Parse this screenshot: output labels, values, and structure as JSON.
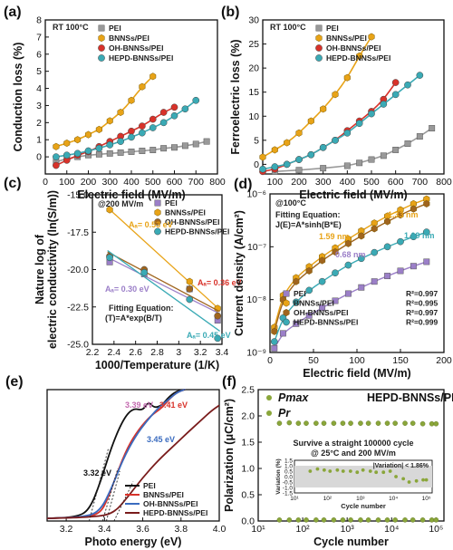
{
  "chart_data": [
    {
      "panel": "(a)",
      "type": "scatter",
      "note": "RT 100°C",
      "xlabel": "Electric field (MV/m)",
      "ylabel": "Conduction loss (%)",
      "xlim": [
        0,
        800
      ],
      "ylim": [
        -1,
        8
      ],
      "xticks": [
        0,
        100,
        200,
        300,
        400,
        500,
        600,
        700,
        800
      ],
      "yticks": [
        0,
        1,
        2,
        3,
        4,
        5,
        6,
        7,
        8
      ],
      "legend_position": "top-left",
      "series": [
        {
          "name": "PEI",
          "color": "#999999",
          "fit": true,
          "x": [
            50,
            100,
            150,
            200,
            250,
            300,
            350,
            400,
            450,
            500,
            550,
            600,
            650,
            700,
            750
          ],
          "y": [
            -0.3,
            -0.1,
            0.0,
            0.1,
            0.15,
            0.2,
            0.25,
            0.3,
            0.35,
            0.4,
            0.5,
            0.55,
            0.65,
            0.75,
            0.9
          ]
        },
        {
          "name": "BNNSs/PEI",
          "color": "#e8a317",
          "fit": true,
          "x": [
            50,
            100,
            150,
            200,
            250,
            300,
            350,
            400,
            450,
            500
          ],
          "y": [
            0.6,
            0.8,
            1.0,
            1.3,
            1.6,
            2.1,
            2.6,
            3.3,
            4.1,
            4.7
          ]
        },
        {
          "name": "OH-BNNSs/PEI",
          "color": "#d8322a",
          "fit": true,
          "x": [
            50,
            100,
            150,
            200,
            250,
            300,
            350,
            400,
            450,
            500,
            550,
            600
          ],
          "y": [
            -0.5,
            -0.2,
            0.1,
            0.3,
            0.6,
            0.9,
            1.2,
            1.5,
            1.8,
            2.2,
            2.6,
            2.9
          ]
        },
        {
          "name": "HEPD-BNNSs/PEI",
          "color": "#3aaab5",
          "fit": true,
          "x": [
            50,
            100,
            150,
            200,
            250,
            300,
            350,
            400,
            450,
            500,
            550,
            600,
            650,
            700
          ],
          "y": [
            0.0,
            0.1,
            0.2,
            0.35,
            0.5,
            0.7,
            0.9,
            1.15,
            1.4,
            1.7,
            2.0,
            2.4,
            2.8,
            3.3
          ]
        }
      ]
    },
    {
      "panel": "(b)",
      "type": "scatter",
      "note": "RT 100°C",
      "xlabel": "Electric field (MV/m)",
      "ylabel": "Ferroelectric loss (%)",
      "xlim": [
        50,
        800
      ],
      "ylim": [
        -2,
        30
      ],
      "xticks": [
        100,
        200,
        300,
        400,
        500,
        600,
        700,
        800
      ],
      "yticks": [
        0,
        5,
        10,
        15,
        20,
        25,
        30
      ],
      "legend_position": "top-left",
      "series": [
        {
          "name": "PEI",
          "color": "#999999",
          "fit": true,
          "x": [
            100,
            200,
            300,
            400,
            450,
            500,
            550,
            600,
            650,
            700,
            750
          ],
          "y": [
            -1.5,
            -1.2,
            -0.8,
            -0.3,
            0.3,
            1.0,
            1.8,
            3.0,
            4.3,
            5.8,
            7.5
          ]
        },
        {
          "name": "BNNSs/PEI",
          "color": "#e8a317",
          "fit": true,
          "x": [
            50,
            100,
            150,
            200,
            250,
            300,
            350,
            400,
            450,
            500
          ],
          "y": [
            1.5,
            3.0,
            4.5,
            6.5,
            9.0,
            11.5,
            14.5,
            18.0,
            22.5,
            26.5
          ]
        },
        {
          "name": "OH-BNNSs/PEI",
          "color": "#d8322a",
          "fit": true,
          "x": [
            50,
            100,
            150,
            200,
            250,
            300,
            350,
            400,
            450,
            500,
            550,
            600
          ],
          "y": [
            -1.5,
            -1.0,
            0.0,
            1.0,
            2.0,
            3.5,
            5.0,
            7.0,
            9.0,
            11.0,
            13.5,
            17.0
          ]
        },
        {
          "name": "HEPD-BNNSs/PEI",
          "color": "#3aaab5",
          "fit": true,
          "x": [
            50,
            100,
            150,
            200,
            250,
            300,
            350,
            400,
            450,
            500,
            550,
            600,
            650,
            700
          ],
          "y": [
            -1.0,
            -0.5,
            0.0,
            1.0,
            2.0,
            3.5,
            5.0,
            6.5,
            8.5,
            10.5,
            12.5,
            14.5,
            16.5,
            18.5
          ]
        }
      ]
    },
    {
      "panel": "(c)",
      "type": "scatter",
      "note": "@200 MV/m",
      "xlabel": "1000/Temperature (1/K)",
      "ylabel_lines": [
        "Nature log of",
        "electric conductivity (ln(S/m))"
      ],
      "xlim": [
        2.2,
        3.4
      ],
      "ylim": [
        -25,
        -15
      ],
      "xticks": [
        2.2,
        2.4,
        2.6,
        2.8,
        3.0,
        3.2,
        3.4
      ],
      "yticks": [
        -25.0,
        -22.5,
        -20.0,
        -17.5,
        -15.0
      ],
      "legend_position": "top-right",
      "fitting_equation": [
        "Fitting Equation:",
        "(T)=A*exp(B/T)"
      ],
      "annotations": [
        {
          "text": "Aₐ= 0.53 eV",
          "color": "#e8a317"
        },
        {
          "text": "Aₐ= 0.36 eV",
          "color": "#d8322a"
        },
        {
          "text": "Aₐ= 0.30 eV",
          "color": "#9b7fc8"
        },
        {
          "text": "Aₐ= 0.45 eV",
          "color": "#3aaab5"
        }
      ],
      "series": [
        {
          "name": "PEI",
          "color": "#9b7fc8",
          "x": [
            2.36,
            2.68,
            3.1,
            3.36
          ],
          "y": [
            -19.5,
            -20.3,
            -21.3,
            -23.4
          ]
        },
        {
          "name": "BNNSs/PEI",
          "color": "#e8a317",
          "x": [
            2.36,
            3.1,
            3.36
          ],
          "y": [
            -16.0,
            -20.8,
            -22.6
          ]
        },
        {
          "name": "OH-BNNSs/PEI",
          "color": "#a0651e",
          "x": [
            2.36,
            2.68,
            3.1,
            3.36
          ],
          "y": [
            -19.1,
            -20.0,
            -21.3,
            -23.1
          ]
        },
        {
          "name": "HEPD-BNNSs/PEI",
          "color": "#3aaab5",
          "x": [
            2.36,
            2.68,
            3.1,
            3.36
          ],
          "y": [
            -19.2,
            -20.2,
            -22.0,
            -24.6
          ]
        }
      ]
    },
    {
      "panel": "(d)",
      "type": "scatter",
      "note": "@100°C",
      "xlabel": "Electric field (MV/m)",
      "ylabel": "Current density (A/cm²)",
      "xscale": "linear",
      "yscale": "log",
      "xlim": [
        0,
        200
      ],
      "ylim": [
        1e-09,
        1e-06
      ],
      "xticks": [
        0,
        50,
        100,
        150,
        200
      ],
      "yticks": [
        "10⁻⁹",
        "10⁻⁸",
        "10⁻⁷",
        "10⁻⁶"
      ],
      "legend_position": "bottom-right",
      "fitting_equation": [
        "Fitting Equation:",
        "J(E)=A*sinh(B*E)"
      ],
      "annotations": [
        {
          "text": "1.33 nm",
          "color": "#e8a317"
        },
        {
          "text": "1.59 nm",
          "color": "#e8a317"
        },
        {
          "text": "1.09 nm",
          "color": "#3aaab5"
        },
        {
          "text": "0.68 nm",
          "color": "#9b7fc8"
        }
      ],
      "r_squared": [
        "R²=0.997",
        "R²=0.995",
        "R²=0.997",
        "R²=0.999"
      ],
      "series": [
        {
          "name": "PEI",
          "color": "#9b7fc8",
          "x": [
            5,
            15,
            30,
            45,
            60,
            75,
            90,
            105,
            120,
            135,
            150,
            165,
            180
          ],
          "y": [
            1.2e-09,
            2.3e-09,
            3.5e-09,
            5e-09,
            7e-09,
            9.5e-09,
            1.3e-08,
            1.7e-08,
            2.2e-08,
            2.8e-08,
            3.5e-08,
            4.3e-08,
            5.2e-08
          ]
        },
        {
          "name": "BNNSs/PEI",
          "color": "#e8a317",
          "x": [
            5,
            15,
            30,
            45,
            60,
            75,
            90,
            105,
            120,
            135,
            150,
            165,
            180
          ],
          "y": [
            3e-09,
            1.2e-08,
            2.6e-08,
            4.2e-08,
            6.5e-08,
            9.5e-08,
            1.4e-07,
            2e-07,
            2.8e-07,
            3.8e-07,
            5e-07,
            6.5e-07,
            8e-07
          ]
        },
        {
          "name": "OH-BNNSs/PEI",
          "color": "#a0651e",
          "x": [
            5,
            15,
            30,
            45,
            60,
            75,
            90,
            105,
            120,
            135,
            150,
            165,
            180
          ],
          "y": [
            2.5e-09,
            1e-08,
            2.2e-08,
            3.5e-08,
            5.5e-08,
            8e-08,
            1.15e-07,
            1.6e-07,
            2.2e-07,
            3e-07,
            4e-07,
            5.2e-07,
            6.5e-07
          ]
        },
        {
          "name": "HEPD-BNNSs/PEI",
          "color": "#3aaab5",
          "x": [
            5,
            15,
            30,
            45,
            60,
            75,
            90,
            105,
            120,
            135,
            150,
            165,
            180
          ],
          "y": [
            1.6e-09,
            4.5e-09,
            9e-09,
            1.5e-08,
            2.2e-08,
            3.2e-08,
            4.5e-08,
            6e-08,
            7.8e-08,
            1e-07,
            1.25e-07,
            1.55e-07,
            1.9e-07
          ]
        }
      ]
    },
    {
      "panel": "(e)",
      "type": "line",
      "xlabel": "Photo energy (eV)",
      "xlim": [
        3.1,
        4.0
      ],
      "ylim": [
        0,
        1
      ],
      "xticks": [
        3.2,
        3.4,
        3.6,
        3.8,
        4.0
      ],
      "legend_position": "bottom-right",
      "annotations": [
        {
          "text": "3.32 eV",
          "color": "#111111"
        },
        {
          "text": "3.39 eV",
          "color": "#c46ab0"
        },
        {
          "text": "3.41 eV",
          "color": "#d8322a"
        },
        {
          "text": "3.45 eV",
          "color": "#3a6bbf"
        }
      ],
      "series": [
        {
          "name": "PEI",
          "color": "#111111",
          "x": [
            3.1,
            3.25,
            3.32,
            3.38,
            3.44,
            3.5,
            3.55,
            3.6,
            3.63,
            3.66,
            3.7,
            3.74,
            3.78,
            3.82
          ],
          "y": [
            0.02,
            0.03,
            0.08,
            0.3,
            0.58,
            0.78,
            0.86,
            0.84,
            0.91,
            0.86,
            0.88,
            0.95,
            0.99,
            1.0
          ]
        },
        {
          "name": "BNNSs/PEI",
          "color": "#d8322a",
          "x": [
            3.1,
            3.3,
            3.38,
            3.42,
            3.47,
            3.52,
            3.58,
            3.64,
            3.7,
            3.74,
            3.78,
            3.82
          ],
          "y": [
            0.02,
            0.03,
            0.06,
            0.18,
            0.38,
            0.56,
            0.7,
            0.8,
            0.86,
            0.93,
            0.98,
            1.0
          ]
        },
        {
          "name": "OH-BNNSs/PEI",
          "color": "#3a6bbf",
          "x": [
            3.1,
            3.3,
            3.38,
            3.44,
            3.5,
            3.56,
            3.62,
            3.68,
            3.74,
            3.78,
            3.82
          ],
          "y": [
            0.02,
            0.03,
            0.08,
            0.26,
            0.48,
            0.64,
            0.76,
            0.86,
            0.93,
            0.98,
            1.0
          ]
        },
        {
          "name": "HEPD-BNNSs/PEI",
          "color": "#7a1c1c",
          "x": [
            3.1,
            3.35,
            3.45,
            3.52,
            3.6,
            3.68,
            3.76,
            3.84,
            3.9,
            3.96,
            4.0
          ],
          "y": [
            0.02,
            0.03,
            0.06,
            0.18,
            0.33,
            0.46,
            0.57,
            0.68,
            0.76,
            0.84,
            0.88
          ]
        }
      ]
    },
    {
      "panel": "(f)",
      "type": "scatter",
      "title": "HEPD-BNNSs/PEI",
      "xlabel": "Cycle number",
      "ylabel": "Polarization (μC/cm²)",
      "xscale": "log",
      "xlim": [
        10,
        150000
      ],
      "ylim": [
        0,
        2.5
      ],
      "xticks": [
        "10¹",
        "10²",
        "10³",
        "10⁴",
        "10⁵"
      ],
      "yticks": [
        0.0,
        0.5,
        1.0,
        1.5,
        2.0,
        2.5
      ],
      "legend_position": "top-left",
      "note_lines": [
        "Survive a straight 100000 cycle",
        "@ 25°C and 200 MV/m"
      ],
      "series": [
        {
          "name": "Pmax",
          "color": "#8aa63a",
          "x": [
            30,
            50,
            80,
            120,
            200,
            300,
            500,
            800,
            1200,
            2000,
            3000,
            5000,
            8000,
            12000,
            20000,
            30000,
            50000,
            80000,
            100000
          ],
          "y": [
            1.86,
            1.87,
            1.86,
            1.86,
            1.86,
            1.86,
            1.86,
            1.86,
            1.86,
            1.86,
            1.86,
            1.86,
            1.86,
            1.86,
            1.86,
            1.86,
            1.85,
            1.85,
            1.85
          ]
        },
        {
          "name": "Pr",
          "color": "#8aa63a",
          "x": [
            30,
            50,
            80,
            120,
            200,
            300,
            500,
            800,
            1200,
            2000,
            3000,
            5000,
            8000,
            12000,
            20000,
            30000,
            50000,
            80000,
            100000
          ],
          "y": [
            0.02,
            0.02,
            0.02,
            0.02,
            0.02,
            0.02,
            0.02,
            0.02,
            0.02,
            0.02,
            0.02,
            0.02,
            0.02,
            0.02,
            0.02,
            0.02,
            0.02,
            0.02,
            0.02
          ]
        }
      ],
      "inset": {
        "xlabel": "Cycle number",
        "ylabel": "Variation (%)",
        "ylim": [
          -1.5,
          1.5
        ],
        "yticks": [
          -1.5,
          -1.0,
          -0.5,
          0.0,
          0.5,
          1.0,
          1.5
        ],
        "xticks": [
          "10¹",
          "10²",
          "10³",
          "10⁴",
          "10⁵"
        ],
        "label": "|Variation| < 1.86%",
        "x": [
          30,
          50,
          80,
          120,
          200,
          300,
          500,
          800,
          1200,
          2000,
          3000,
          5000,
          8000,
          12000,
          20000,
          30000,
          50000,
          80000,
          100000
        ],
        "y": [
          0.5,
          0.7,
          0.6,
          0.5,
          0.6,
          0.5,
          0.5,
          0.4,
          0.6,
          0.5,
          0.4,
          0.4,
          0.5,
          0.0,
          -0.2,
          -0.5,
          -0.4,
          -0.3,
          -0.3
        ]
      }
    }
  ]
}
